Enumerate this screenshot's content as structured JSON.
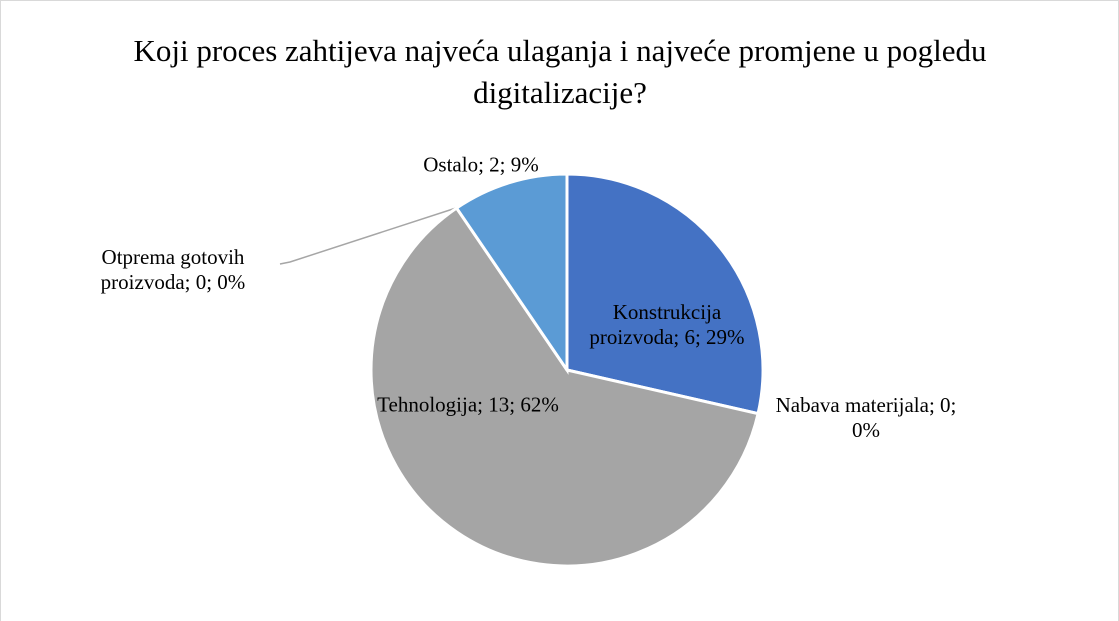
{
  "chart_data": {
    "type": "pie",
    "title": "Koji proces zahtijeva najveća ulaganja i najveće promjene u pogledu digitalizacije?",
    "categories": [
      "Konstrukcija proizvoda",
      "Nabava materijala",
      "Tehnologija",
      "Otprema gotovih proizvoda",
      "Ostalo"
    ],
    "values": [
      6,
      0,
      13,
      0,
      2
    ],
    "value_labels": [
      "Konstrukcija proizvoda; 6; 29%",
      "Nabava materijala; 0; 0%",
      "Tehnologija; 13; 62%",
      "Otprema gotovih proizvoda; 0; 0%",
      "Ostalo; 2; 9%"
    ],
    "colors": [
      "#4472c4",
      "#ed7d31",
      "#a5a5a5",
      "#ffc000",
      "#5b9bd5"
    ]
  }
}
